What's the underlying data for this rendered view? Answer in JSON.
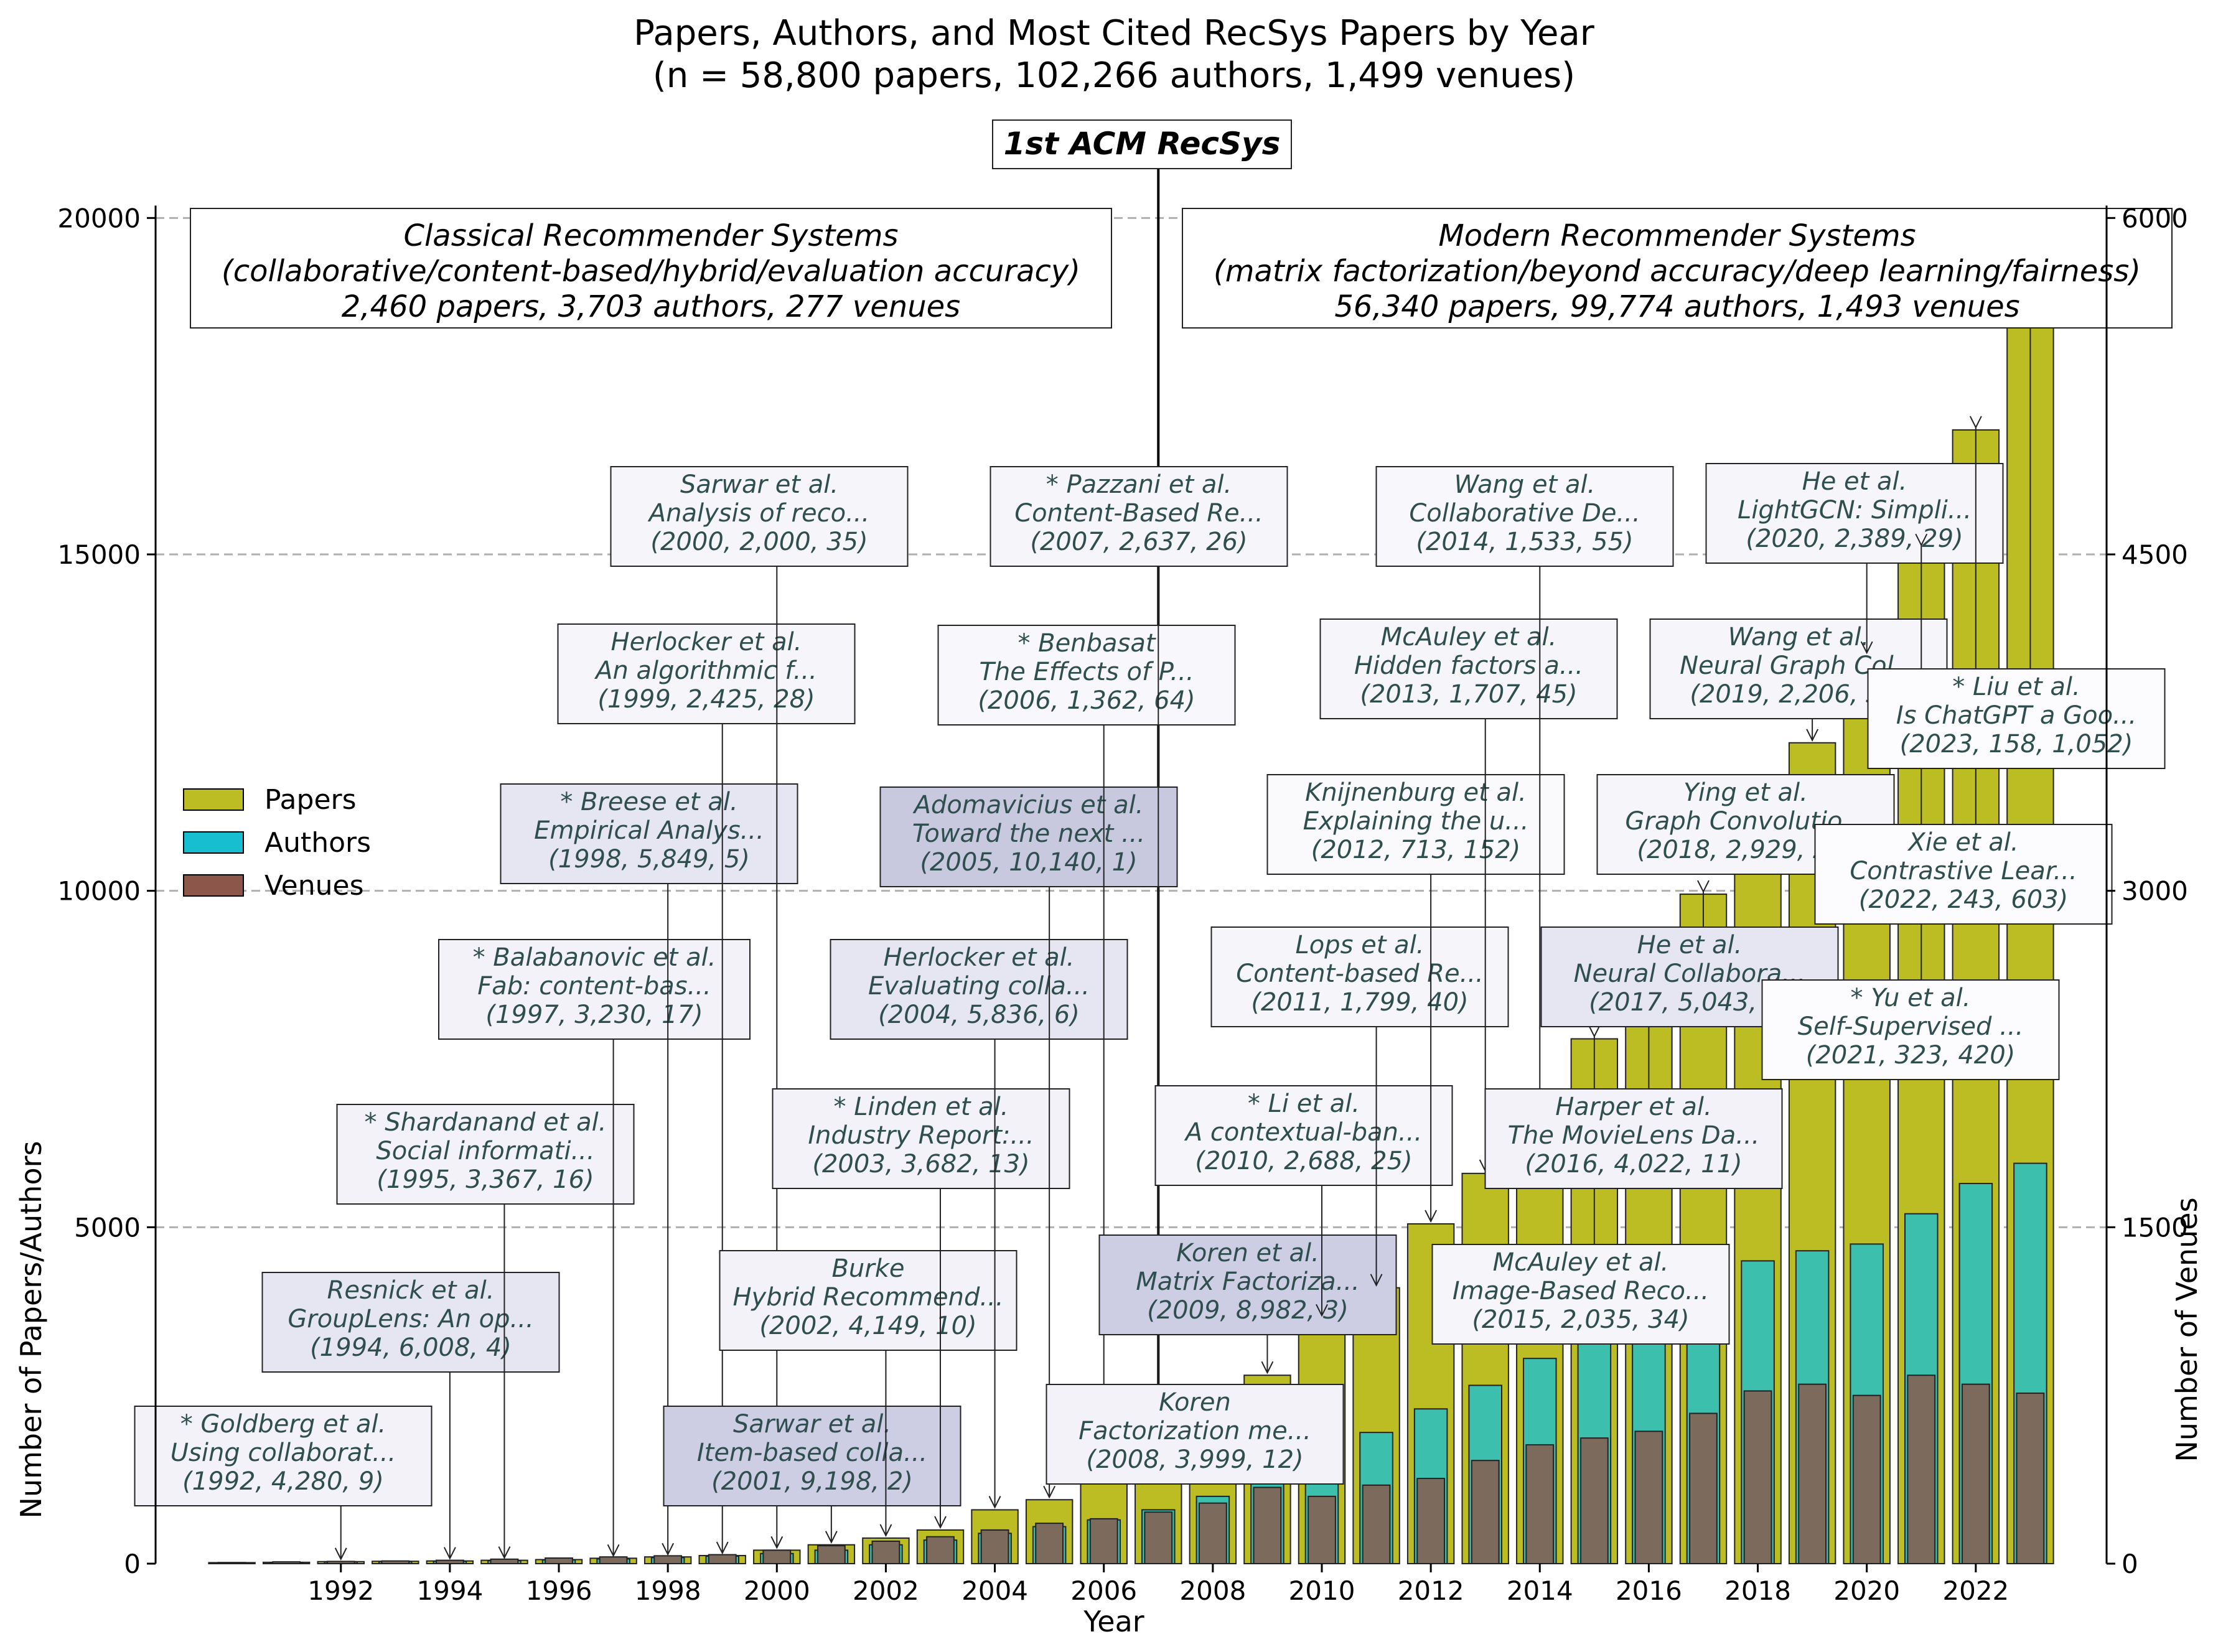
{
  "chart_data": {
    "type": "bar",
    "title": "Papers, Authors, and Most Cited RecSys Papers by Year",
    "subtitle": "(n = 58,800 papers, 102,266 authors, 1,499 venues)",
    "xlabel": "Year",
    "ylabel_left": "Number of Papers/Authors",
    "ylabel_right": "Number of Venues",
    "ylim_left": [
      0,
      22500
    ],
    "ylim_right": [
      0,
      6750
    ],
    "yticks_left": [
      0,
      5000,
      10000,
      15000,
      20000
    ],
    "yticks_right": [
      0,
      1500,
      3000,
      4500,
      6000
    ],
    "xticks": [
      1992,
      1994,
      1996,
      1998,
      2000,
      2002,
      2004,
      2006,
      2008,
      2010,
      2012,
      2014,
      2016,
      2018,
      2020,
      2022
    ],
    "grid": "horizontal dashed",
    "legend_position": "center-left",
    "years": [
      1990,
      1991,
      1992,
      1993,
      1994,
      1995,
      1996,
      1997,
      1998,
      1999,
      2000,
      2001,
      2002,
      2003,
      2004,
      2005,
      2006,
      2007,
      2008,
      2009,
      2010,
      2011,
      2012,
      2013,
      2014,
      2015,
      2016,
      2017,
      2018,
      2019,
      2020,
      2021,
      2022,
      2023
    ],
    "series": [
      {
        "name": "Papers",
        "color": "#bcbd22",
        "axis": "left",
        "values": [
          15,
          20,
          30,
          35,
          40,
          50,
          60,
          80,
          100,
          120,
          200,
          280,
          380,
          500,
          800,
          950,
          1200,
          1600,
          2050,
          2800,
          3650,
          4100,
          5050,
          5800,
          6800,
          7800,
          8650,
          9950,
          11100,
          12200,
          13500,
          15100,
          16850,
          18900
        ]
      },
      {
        "name": "Authors",
        "color": "#17becf",
        "axis": "left",
        "values": [
          10,
          15,
          25,
          30,
          35,
          45,
          55,
          70,
          90,
          110,
          150,
          200,
          280,
          350,
          450,
          550,
          650,
          800,
          1000,
          1300,
          1700,
          1950,
          2300,
          2650,
          3050,
          3400,
          3550,
          4050,
          4500,
          4650,
          4750,
          5200,
          5650,
          5950
        ]
      },
      {
        "name": "Venues",
        "color": "#8c564b",
        "axis": "right",
        "values": [
          5,
          8,
          10,
          12,
          15,
          20,
          25,
          30,
          35,
          40,
          60,
          80,
          100,
          120,
          150,
          180,
          200,
          230,
          270,
          340,
          300,
          350,
          380,
          460,
          530,
          560,
          590,
          670,
          770,
          800,
          750,
          840,
          800,
          760
        ]
      }
    ],
    "header_line": {
      "label": "1st ACM RecSys",
      "year": 2007
    },
    "eras": [
      {
        "lines": [
          "Classical Recommender Systems",
          "(collaborative/content-based/hybrid/evaluation accuracy)",
          "2,460 papers, 3,703 authors, 277 venues"
        ]
      },
      {
        "lines": [
          "Modern Recommender Systems",
          "(matrix factorization/beyond accuracy/deep learning/fairness)",
          "56,340 papers, 99,774 authors, 1,493 venues"
        ]
      }
    ],
    "annotations": [
      {
        "year": 1992,
        "lines": [
          "* Goldberg et al.",
          "Using collaborat...",
          "(1992, 4,280, 9)"
        ],
        "fill": "#f2f2f8"
      },
      {
        "year": 1994,
        "lines": [
          "Resnick et al.",
          "GroupLens: An op...",
          "(1994, 6,008, 4)"
        ],
        "fill": "#e6e6f2"
      },
      {
        "year": 1995,
        "lines": [
          "* Shardanand et al.",
          "Social informati...",
          "(1995, 3,367, 16)"
        ],
        "fill": "#f2f2f8"
      },
      {
        "year": 1997,
        "lines": [
          "* Balabanovic et al.",
          "Fab: content-bas...",
          "(1997, 3,230, 17)"
        ],
        "fill": "#f2f2f8"
      },
      {
        "year": 1998,
        "lines": [
          "* Breese et al.",
          "Empirical Analys...",
          "(1998, 5,849, 5)"
        ],
        "fill": "#e6e6f2"
      },
      {
        "year": 1999,
        "lines": [
          "Herlocker et al.",
          "An algorithmic f...",
          "(1999, 2,425, 28)"
        ],
        "fill": "#f5f5fa"
      },
      {
        "year": 2000,
        "lines": [
          "Sarwar et al.",
          "Analysis of reco...",
          "(2000, 2,000, 35)"
        ],
        "fill": "#f5f5fa"
      },
      {
        "year": 2001,
        "lines": [
          "Sarwar et al.",
          "Item-based colla...",
          "(2001, 9,198, 2)"
        ],
        "fill": "#cdcde3"
      },
      {
        "year": 2002,
        "lines": [
          "Burke",
          "Hybrid Recommend...",
          "(2002, 4,149, 10)"
        ],
        "fill": "#f2f2f8"
      },
      {
        "year": 2003,
        "lines": [
          "* Linden et al.",
          "Industry Report:...",
          "(2003, 3,682, 13)"
        ],
        "fill": "#f2f2f8"
      },
      {
        "year": 2004,
        "lines": [
          "Herlocker et al.",
          "Evaluating colla...",
          "(2004, 5,836, 6)"
        ],
        "fill": "#e6e6f2"
      },
      {
        "year": 2005,
        "lines": [
          "Adomavicius et al.",
          "Toward the next ...",
          "(2005, 10,140, 1)"
        ],
        "fill": "#c8c8df"
      },
      {
        "year": 2006,
        "lines": [
          "* Benbasat",
          "The Effects of P...",
          "(2006, 1,362, 64)"
        ],
        "fill": "#f8f8fc"
      },
      {
        "year": 2007,
        "lines": [
          "* Pazzani et al.",
          "Content-Based Re...",
          "(2007, 2,637, 26)"
        ],
        "fill": "#f5f5fa"
      },
      {
        "year": 2008,
        "lines": [
          "Koren",
          "Factorization me...",
          "(2008, 3,999, 12)"
        ],
        "fill": "#f2f2f8"
      },
      {
        "year": 2009,
        "lines": [
          "Koren et al.",
          "Matrix Factoriza...",
          "(2009, 8,982, 3)"
        ],
        "fill": "#cdcde3"
      },
      {
        "year": 2010,
        "lines": [
          "* Li et al.",
          "A contextual-ban...",
          "(2010, 2,688, 25)"
        ],
        "fill": "#f5f5fa"
      },
      {
        "year": 2011,
        "lines": [
          "Lops et al.",
          "Content-based Re...",
          "(2011, 1,799, 40)"
        ],
        "fill": "#f5f5fa"
      },
      {
        "year": 2012,
        "lines": [
          "Knijnenburg et al.",
          "Explaining the u...",
          "(2012, 713, 152)"
        ],
        "fill": "#fafafc"
      },
      {
        "year": 2013,
        "lines": [
          "McAuley et al.",
          "Hidden factors a...",
          "(2013, 1,707, 45)"
        ],
        "fill": "#f5f5fa"
      },
      {
        "year": 2014,
        "lines": [
          "Wang et al.",
          "Collaborative De...",
          "(2014, 1,533, 55)"
        ],
        "fill": "#f8f8fc"
      },
      {
        "year": 2015,
        "lines": [
          "McAuley et al.",
          "Image-Based Reco...",
          "(2015, 2,035, 34)"
        ],
        "fill": "#f5f5fa"
      },
      {
        "year": 2016,
        "lines": [
          "Harper et al.",
          "The MovieLens Da...",
          "(2016, 4,022, 11)"
        ],
        "fill": "#f2f2f8"
      },
      {
        "year": 2017,
        "lines": [
          "He et al.",
          "Neural Collabora...",
          "(2017, 5,043, 8)"
        ],
        "fill": "#e6e6f2"
      },
      {
        "year": 2018,
        "lines": [
          "Ying et al.",
          "Graph Convolutio...",
          "(2018, 2,929, 21)"
        ],
        "fill": "#f5f5fa"
      },
      {
        "year": 2019,
        "lines": [
          "Wang et al.",
          "Neural Graph Col...",
          "(2019, 2,206, 32)"
        ],
        "fill": "#f5f5fa"
      },
      {
        "year": 2020,
        "lines": [
          "He et al.",
          "LightGCN: Simpli...",
          "(2020, 2,389, 29)"
        ],
        "fill": "#f5f5fa"
      },
      {
        "year": 2021,
        "lines": [
          "* Yu et al.",
          "Self-Supervised ...",
          "(2021, 323, 420)"
        ],
        "fill": "#fcfcfe"
      },
      {
        "year": 2022,
        "lines": [
          "Xie et al.",
          "Contrastive Lear...",
          "(2022, 243, 603)"
        ],
        "fill": "#fcfcfe"
      },
      {
        "year": 2023,
        "lines": [
          "* Liu et al.",
          "Is ChatGPT a Goo...",
          "(2023, 158, 1,052)"
        ],
        "fill": "#fcfcfe"
      }
    ]
  }
}
